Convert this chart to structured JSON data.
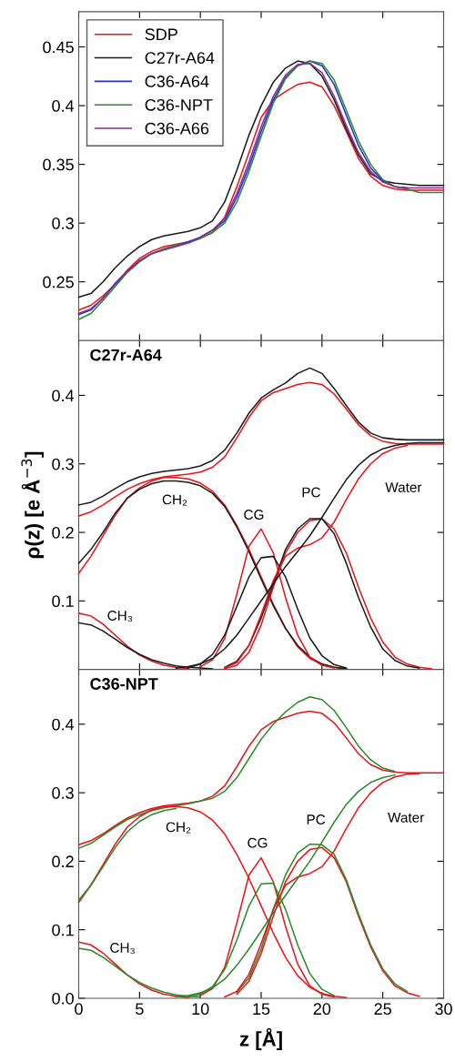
{
  "chart_data": [
    {
      "type": "line",
      "xlim": [
        0,
        30
      ],
      "xticks": [
        0,
        5,
        10,
        15,
        20,
        25,
        30
      ],
      "ylim": [
        0.2,
        0.48
      ],
      "yticks": [
        0.25,
        0.3,
        0.35,
        0.4,
        0.45
      ],
      "tick_labels": "y",
      "legend": "top left",
      "grid": false,
      "marker": "none",
      "line_style": "solid",
      "x": [
        0,
        1,
        2,
        3,
        4,
        5,
        6,
        7,
        8,
        9,
        10,
        11,
        12,
        13,
        14,
        15,
        16,
        17,
        18,
        19,
        20,
        21,
        22,
        23,
        24,
        25,
        26,
        27,
        28,
        29,
        30
      ],
      "series": [
        {
          "name": "SDP",
          "color": "#e8141b",
          "values": [
            0.226,
            0.23,
            0.238,
            0.248,
            0.26,
            0.27,
            0.276,
            0.28,
            0.282,
            0.284,
            0.287,
            0.292,
            0.305,
            0.331,
            0.36,
            0.39,
            0.405,
            0.412,
            0.418,
            0.42,
            0.416,
            0.4,
            0.378,
            0.355,
            0.34,
            0.332,
            0.329,
            0.328,
            0.328,
            0.328,
            0.328
          ]
        },
        {
          "name": "C27r-A64",
          "color": "#1a1a1a",
          "values": [
            0.237,
            0.24,
            0.25,
            0.262,
            0.272,
            0.28,
            0.286,
            0.289,
            0.291,
            0.293,
            0.296,
            0.302,
            0.318,
            0.345,
            0.375,
            0.4,
            0.42,
            0.432,
            0.438,
            0.436,
            0.425,
            0.405,
            0.38,
            0.358,
            0.342,
            0.336,
            0.334,
            0.333,
            0.332,
            0.332,
            0.332
          ]
        },
        {
          "name": "C36-A64",
          "color": "#1f2fd0",
          "values": [
            0.222,
            0.226,
            0.236,
            0.248,
            0.259,
            0.268,
            0.274,
            0.278,
            0.281,
            0.284,
            0.288,
            0.294,
            0.302,
            0.322,
            0.348,
            0.378,
            0.405,
            0.424,
            0.434,
            0.438,
            0.434,
            0.418,
            0.392,
            0.366,
            0.347,
            0.336,
            0.331,
            0.33,
            null,
            null,
            null
          ]
        },
        {
          "name": "C36-NPT",
          "color": "#2a8a2a",
          "values": [
            0.218,
            0.223,
            0.234,
            0.246,
            0.258,
            0.267,
            0.274,
            0.278,
            0.281,
            0.283,
            0.287,
            0.292,
            0.3,
            0.318,
            0.344,
            0.374,
            0.402,
            0.423,
            0.434,
            0.438,
            0.436,
            0.422,
            0.396,
            0.37,
            0.35,
            0.337,
            0.331,
            0.329,
            0.326,
            0.326,
            0.326
          ]
        },
        {
          "name": "C36-A66",
          "color": "#8a2a9a",
          "values": [
            0.223,
            0.227,
            0.236,
            0.249,
            0.259,
            0.268,
            0.274,
            0.277,
            0.28,
            0.283,
            0.288,
            0.294,
            0.304,
            0.325,
            0.352,
            0.382,
            0.408,
            0.426,
            0.435,
            0.436,
            0.428,
            0.408,
            0.383,
            0.36,
            0.344,
            0.335,
            0.331,
            0.33,
            0.33,
            0.33,
            0.33
          ]
        }
      ]
    },
    {
      "type": "line",
      "title": "C27r-A64",
      "ylabel": "ρ(z) [e Å$^{−3}$]",
      "xlim": [
        0,
        30
      ],
      "xticks": [
        0,
        5,
        10,
        15,
        20,
        25,
        30
      ],
      "ylim": [
        0,
        0.48
      ],
      "yticks": [
        0.1,
        0.2,
        0.3,
        0.4
      ],
      "tick_labels": "y",
      "grid": false,
      "marker": "none",
      "line_style": "solid",
      "x": [
        0,
        1,
        2,
        3,
        4,
        5,
        6,
        7,
        8,
        9,
        10,
        11,
        12,
        13,
        14,
        15,
        16,
        17,
        18,
        19,
        20,
        21,
        22,
        23,
        24,
        25,
        26,
        27,
        28,
        29,
        30
      ],
      "annotations": [
        "CH₂",
        "CG",
        "PC",
        "Water",
        "CH₃"
      ],
      "series": [
        {
          "color": "#e8141b",
          "values": [
            0.224,
            0.23,
            0.24,
            0.252,
            0.263,
            0.271,
            0.277,
            0.281,
            0.283,
            0.285,
            0.288,
            0.295,
            0.31,
            0.338,
            0.368,
            0.392,
            0.404,
            0.41,
            0.416,
            0.419,
            0.416,
            0.402,
            0.38,
            0.357,
            0.341,
            0.333,
            0.33,
            0.329,
            0.329,
            0.329,
            0.329
          ]
        },
        {
          "color": "#1a1a1a",
          "values": [
            0.24,
            0.244,
            0.253,
            0.264,
            0.274,
            0.281,
            0.286,
            0.289,
            0.291,
            0.293,
            0.297,
            0.305,
            0.32,
            0.345,
            0.374,
            0.396,
            0.408,
            0.418,
            0.432,
            0.44,
            0.432,
            0.41,
            0.385,
            0.361,
            0.345,
            0.338,
            0.336,
            0.335,
            0.335,
            0.335,
            0.335
          ]
        },
        {
          "color": "#e8141b",
          "values": [
            0.14,
            0.165,
            0.195,
            0.225,
            0.25,
            0.265,
            0.275,
            0.28,
            0.28,
            0.278,
            0.272,
            0.26,
            0.24,
            0.21,
            0.175,
            0.135,
            0.095,
            0.06,
            0.033,
            0.016,
            0.007,
            0.003,
            0.001,
            null,
            null,
            null,
            null,
            null,
            null,
            null,
            null
          ]
        },
        {
          "color": "#1a1a1a",
          "values": [
            0.155,
            0.175,
            0.2,
            0.228,
            0.25,
            0.263,
            0.271,
            0.275,
            0.275,
            0.273,
            0.268,
            0.257,
            0.238,
            0.208,
            0.172,
            0.132,
            0.093,
            0.06,
            0.035,
            0.018,
            0.008,
            0.003,
            0.001,
            null,
            null,
            null,
            null,
            null,
            null,
            null,
            null
          ]
        },
        {
          "color": "#e8141b",
          "values": [
            0.082,
            0.078,
            0.066,
            0.05,
            0.034,
            0.021,
            0.012,
            0.006,
            0.003,
            0.001,
            null,
            null,
            null,
            null,
            null,
            null,
            null,
            null,
            null,
            null,
            null,
            null,
            null,
            null,
            null,
            null,
            null,
            null,
            null,
            null,
            null
          ]
        },
        {
          "color": "#1a1a1a",
          "values": [
            0.068,
            0.065,
            0.056,
            0.044,
            0.032,
            0.022,
            0.014,
            0.009,
            0.005,
            0.003,
            0.002,
            0.001,
            null,
            null,
            null,
            null,
            null,
            null,
            null,
            null,
            null,
            null,
            null,
            null,
            null,
            null,
            null,
            null,
            null,
            null,
            null
          ]
        },
        {
          "color": "#e8141b",
          "values": [
            null,
            null,
            null,
            null,
            null,
            null,
            null,
            null,
            null,
            null,
            0.004,
            0.014,
            0.045,
            0.11,
            0.18,
            0.205,
            0.17,
            0.105,
            0.05,
            0.018,
            0.006,
            0.002,
            null,
            null,
            null,
            null,
            null,
            null,
            null,
            null,
            null
          ]
        },
        {
          "color": "#1a1a1a",
          "values": [
            null,
            null,
            null,
            null,
            null,
            null,
            null,
            null,
            null,
            0.002,
            0.008,
            0.022,
            0.05,
            0.092,
            0.135,
            0.163,
            0.165,
            0.135,
            0.088,
            0.046,
            0.02,
            0.007,
            0.002,
            null,
            null,
            null,
            null,
            null,
            null,
            null,
            null
          ]
        },
        {
          "color": "#e8141b",
          "values": [
            null,
            null,
            null,
            null,
            null,
            null,
            null,
            null,
            null,
            null,
            null,
            null,
            0.001,
            0.006,
            0.025,
            0.065,
            0.12,
            0.17,
            0.2,
            0.217,
            0.22,
            0.205,
            0.17,
            0.12,
            0.075,
            0.04,
            0.018,
            0.008,
            0.003,
            0.001,
            null
          ]
        },
        {
          "color": "#1a1a1a",
          "values": [
            null,
            null,
            null,
            null,
            null,
            null,
            null,
            null,
            null,
            null,
            null,
            null,
            0.003,
            0.012,
            0.035,
            0.075,
            0.125,
            0.175,
            0.205,
            0.22,
            0.22,
            0.198,
            0.155,
            0.105,
            0.062,
            0.03,
            0.013,
            0.005,
            0.002,
            null,
            null
          ]
        },
        {
          "color": "#e8141b",
          "values": [
            null,
            null,
            null,
            null,
            null,
            null,
            null,
            null,
            null,
            null,
            null,
            null,
            0.002,
            0.01,
            0.035,
            0.08,
            0.13,
            0.165,
            0.177,
            0.182,
            0.192,
            0.215,
            0.248,
            0.278,
            0.3,
            0.315,
            0.323,
            0.327,
            null,
            null,
            null
          ]
        },
        {
          "color": "#1a1a1a",
          "values": [
            null,
            null,
            null,
            null,
            null,
            null,
            null,
            null,
            0.002,
            0.004,
            0.008,
            0.016,
            0.03,
            0.05,
            0.075,
            0.1,
            0.125,
            0.15,
            0.172,
            0.195,
            0.222,
            0.25,
            0.277,
            0.298,
            0.313,
            0.322,
            0.327,
            0.33,
            0.331,
            0.331,
            0.331
          ]
        }
      ]
    },
    {
      "type": "line",
      "title": "C36-NPT",
      "xlabel": "z [Å]",
      "xlim": [
        0,
        30
      ],
      "xticks": [
        0,
        5,
        10,
        15,
        20,
        25,
        30
      ],
      "ylim": [
        0,
        0.48
      ],
      "yticks": [
        {
          "value": 0,
          "label": "0.0"
        },
        0.1,
        0.2,
        0.3,
        0.4
      ],
      "grid": false,
      "marker": "none",
      "line_style": "solid",
      "x": [
        0,
        1,
        2,
        3,
        4,
        5,
        6,
        7,
        8,
        9,
        10,
        11,
        12,
        13,
        14,
        15,
        16,
        17,
        18,
        19,
        20,
        21,
        22,
        23,
        24,
        25,
        26,
        27,
        28,
        29,
        30
      ],
      "annotations": [
        "CH₂",
        "CG",
        "PC",
        "Water",
        "CH₃"
      ],
      "series": [
        {
          "color": "#e8141b",
          "values": [
            0.224,
            0.23,
            0.24,
            0.252,
            0.263,
            0.271,
            0.277,
            0.281,
            0.283,
            0.285,
            0.288,
            0.295,
            0.31,
            0.338,
            0.368,
            0.392,
            0.404,
            0.41,
            0.416,
            0.419,
            0.416,
            0.402,
            0.38,
            0.357,
            0.341,
            0.333,
            0.33,
            0.329,
            0.329,
            0.329,
            0.329
          ]
        },
        {
          "color": "#2a8a2a",
          "values": [
            0.219,
            0.226,
            0.238,
            0.25,
            0.261,
            0.268,
            0.274,
            0.278,
            0.281,
            0.284,
            0.288,
            0.292,
            0.302,
            0.322,
            0.35,
            0.378,
            0.4,
            0.418,
            0.432,
            0.44,
            0.436,
            0.42,
            0.395,
            0.368,
            0.348,
            0.336,
            0.331,
            null,
            null,
            null,
            null
          ]
        },
        {
          "color": "#e8141b",
          "values": [
            0.14,
            0.165,
            0.195,
            0.225,
            0.25,
            0.265,
            0.275,
            0.28,
            0.28,
            0.278,
            0.272,
            0.26,
            0.24,
            0.21,
            0.175,
            0.135,
            0.095,
            0.06,
            0.033,
            0.016,
            0.007,
            0.003,
            0.001,
            null,
            null,
            null,
            null,
            null,
            null,
            null,
            null
          ]
        },
        {
          "color": "#2a8a2a",
          "values": [
            0.143,
            0.165,
            0.192,
            0.22,
            0.243,
            0.258,
            0.268,
            0.274,
            0.277,
            null,
            null,
            null,
            null,
            null,
            null,
            null,
            null,
            null,
            null,
            null,
            null,
            null,
            null,
            null,
            null,
            null,
            null,
            null,
            null,
            null,
            null
          ]
        },
        {
          "color": "#e8141b",
          "values": [
            0.082,
            0.078,
            0.066,
            0.05,
            0.034,
            0.021,
            0.012,
            0.006,
            0.003,
            0.001,
            null,
            null,
            null,
            null,
            null,
            null,
            null,
            null,
            null,
            null,
            null,
            null,
            null,
            null,
            null,
            null,
            null,
            null,
            null,
            null,
            null
          ]
        },
        {
          "color": "#2a8a2a",
          "values": [
            0.073,
            0.07,
            0.06,
            0.047,
            0.034,
            0.023,
            0.015,
            0.009,
            0.005,
            0.003,
            0.002,
            null,
            null,
            null,
            null,
            null,
            null,
            null,
            null,
            null,
            null,
            null,
            null,
            null,
            null,
            null,
            null,
            null,
            null,
            null,
            null
          ]
        },
        {
          "color": "#e8141b",
          "values": [
            null,
            null,
            null,
            null,
            null,
            null,
            null,
            null,
            null,
            null,
            0.004,
            0.014,
            0.045,
            0.11,
            0.18,
            0.205,
            0.17,
            0.105,
            0.05,
            0.018,
            0.006,
            0.002,
            null,
            null,
            null,
            null,
            null,
            null,
            null,
            null,
            null
          ]
        },
        {
          "color": "#2a8a2a",
          "values": [
            null,
            null,
            null,
            null,
            null,
            null,
            null,
            null,
            null,
            0.002,
            0.006,
            0.017,
            0.042,
            0.085,
            0.135,
            0.167,
            0.168,
            0.13,
            0.078,
            0.036,
            0.013,
            0.004,
            null,
            null,
            null,
            null,
            null,
            null,
            null,
            null,
            null
          ]
        },
        {
          "color": "#e8141b",
          "values": [
            null,
            null,
            null,
            null,
            null,
            null,
            null,
            null,
            null,
            null,
            null,
            null,
            null,
            0.006,
            0.025,
            0.065,
            0.12,
            0.17,
            0.2,
            0.217,
            0.22,
            0.205,
            0.17,
            0.12,
            0.075,
            0.04,
            0.018,
            0.008,
            0.003,
            null,
            null
          ]
        },
        {
          "color": "#2a8a2a",
          "values": [
            null,
            null,
            null,
            null,
            null,
            null,
            null,
            null,
            null,
            null,
            null,
            null,
            null,
            0.009,
            0.03,
            0.072,
            0.13,
            0.18,
            0.212,
            0.225,
            0.224,
            0.21,
            0.173,
            0.123,
            0.078,
            0.043,
            0.021,
            0.01,
            null,
            null,
            null
          ]
        },
        {
          "color": "#e8141b",
          "values": [
            null,
            null,
            null,
            null,
            null,
            null,
            null,
            null,
            null,
            null,
            null,
            null,
            0.002,
            0.01,
            0.035,
            0.08,
            0.13,
            0.165,
            0.177,
            0.182,
            0.192,
            0.215,
            0.248,
            0.278,
            0.3,
            0.315,
            0.323,
            0.327,
            0.328,
            null,
            null
          ]
        },
        {
          "color": "#2a8a2a",
          "values": [
            null,
            null,
            null,
            null,
            null,
            null,
            null,
            null,
            0.002,
            0.004,
            0.008,
            0.015,
            0.028,
            0.048,
            0.072,
            0.098,
            0.125,
            0.15,
            0.175,
            0.2,
            0.228,
            0.257,
            0.283,
            0.302,
            0.315,
            0.322,
            0.326,
            null,
            null,
            null,
            null
          ]
        }
      ]
    }
  ]
}
